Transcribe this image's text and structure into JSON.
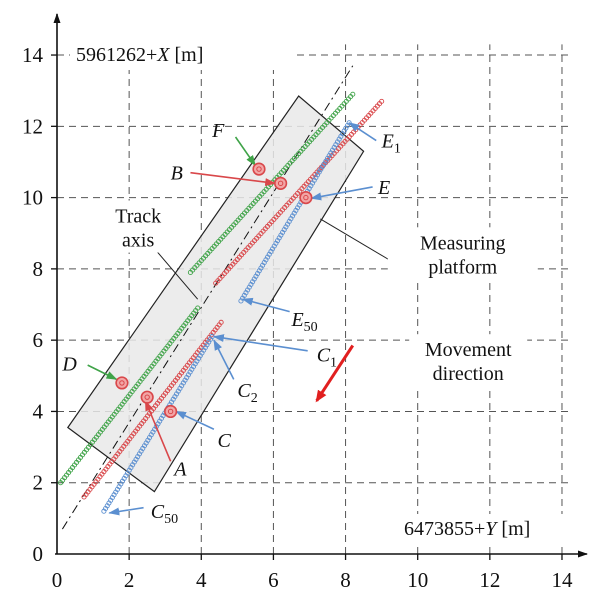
{
  "colors": {
    "green": "#3fa348",
    "red": "#d9474a",
    "blue": "#5b8fd0",
    "platform": "#e9e9e9",
    "movement_arrow": "#e11f1f",
    "grid": "#555555"
  },
  "chart_data": {
    "type": "scatter",
    "xlim": [
      0,
      14
    ],
    "ylim": [
      0,
      14
    ],
    "x_ticks": [
      0,
      2,
      4,
      6,
      8,
      10,
      12,
      14
    ],
    "y_ticks": [
      0,
      2,
      4,
      6,
      8,
      10,
      12,
      14
    ],
    "grid": true,
    "x_axis_label": {
      "base": "6473855+",
      "var": "Y",
      "unit": " [m]"
    },
    "y_axis_label": {
      "base": "5961262+",
      "var": "X",
      "unit": " [m]"
    },
    "series": [
      {
        "color": "green",
        "segments": [
          [
            [
              0.1,
              2.0
            ],
            [
              3.9,
              6.9
            ]
          ],
          [
            [
              3.7,
              7.9
            ],
            [
              8.2,
              12.9
            ]
          ]
        ]
      },
      {
        "color": "red",
        "segments": [
          [
            [
              0.75,
              1.6
            ],
            [
              4.55,
              6.5
            ]
          ],
          [
            [
              4.4,
              7.6
            ],
            [
              9.0,
              12.7
            ]
          ]
        ]
      },
      {
        "color": "blue",
        "segments": [
          [
            [
              1.3,
              1.2
            ],
            [
              4.3,
              6.1
            ]
          ],
          [
            [
              5.1,
              7.1
            ],
            [
              8.1,
              12.1
            ]
          ]
        ]
      }
    ],
    "track_axis_line": [
      [
        0.15,
        0.7
      ],
      [
        8.2,
        13.7
      ]
    ],
    "platform_polygon": [
      [
        0.3,
        3.55
      ],
      [
        2.7,
        1.75
      ],
      [
        8.5,
        11.3
      ],
      [
        6.7,
        12.85
      ]
    ],
    "points": [
      {
        "id": "F",
        "x": 5.6,
        "y": 10.8,
        "color": "red"
      },
      {
        "id": "B",
        "x": 6.2,
        "y": 10.4,
        "color": "red"
      },
      {
        "id": "E",
        "x": 6.9,
        "y": 10.0,
        "color": "red"
      },
      {
        "id": "D",
        "x": 1.8,
        "y": 4.8,
        "color": "red"
      },
      {
        "id": "A",
        "x": 2.5,
        "y": 4.4,
        "color": "red"
      },
      {
        "id": "C",
        "x": 3.15,
        "y": 4.0,
        "color": "red"
      }
    ],
    "callouts": [
      {
        "main": "F",
        "sub": "",
        "color": "green",
        "text": [
          4.3,
          11.9
        ],
        "from": [
          4.95,
          11.7
        ],
        "to": [
          5.5,
          10.9
        ]
      },
      {
        "main": "B",
        "sub": "",
        "color": "red",
        "text": [
          3.15,
          10.7
        ],
        "from": [
          3.7,
          10.7
        ],
        "to": [
          6.05,
          10.4
        ]
      },
      {
        "main": "E",
        "sub": "",
        "color": "blue",
        "text": [
          8.9,
          10.3
        ],
        "from": [
          8.75,
          10.3
        ],
        "to": [
          7.05,
          9.98
        ]
      },
      {
        "main": "E",
        "sub": "1",
        "color": "blue",
        "text": [
          9.0,
          11.6
        ],
        "from": [
          8.85,
          11.6
        ],
        "to": [
          8.1,
          12.1
        ]
      },
      {
        "main": "E",
        "sub": "50",
        "color": "blue",
        "text": [
          6.5,
          6.6
        ],
        "from": [
          6.45,
          6.8
        ],
        "to": [
          5.15,
          7.15
        ]
      },
      {
        "main": "C",
        "sub": "1",
        "color": "blue",
        "text": [
          7.2,
          5.6
        ],
        "from": [
          6.95,
          5.7
        ],
        "to": [
          4.35,
          6.1
        ]
      },
      {
        "main": "C",
        "sub": "2",
        "color": "blue",
        "text": [
          5.0,
          4.6
        ],
        "from": [
          4.9,
          4.9
        ],
        "to": [
          4.35,
          6.0
        ]
      },
      {
        "main": "C",
        "sub": "",
        "color": "blue",
        "text": [
          4.45,
          3.2
        ],
        "from": [
          4.35,
          3.5
        ],
        "to": [
          3.3,
          4.0
        ]
      },
      {
        "main": "C",
        "sub": "50",
        "color": "blue",
        "text": [
          2.6,
          1.2
        ],
        "from": [
          2.4,
          1.3
        ],
        "to": [
          1.45,
          1.15
        ]
      },
      {
        "main": "D",
        "sub": "",
        "color": "green",
        "text": [
          0.15,
          5.35
        ],
        "from": [
          0.85,
          5.3
        ],
        "to": [
          1.65,
          4.9
        ]
      },
      {
        "main": "A",
        "sub": "",
        "color": "red",
        "text": [
          3.25,
          2.4
        ],
        "from": [
          3.15,
          2.6
        ],
        "to": [
          2.45,
          4.3
        ]
      }
    ],
    "text_annotations": [
      {
        "lines": [
          "Track",
          "axis"
        ],
        "x": 2.25,
        "y": 9.3,
        "anchor": "middle",
        "leader": [
          [
            2.55,
            8.75
          ],
          [
            3.9,
            7.15
          ]
        ]
      },
      {
        "lines": [
          "Measuring",
          "platform"
        ],
        "x": 11.25,
        "y": 8.55,
        "anchor": "middle",
        "leader": [
          [
            9.3,
            8.2
          ],
          [
            7.3,
            9.4
          ]
        ]
      },
      {
        "lines": [
          "Movement",
          "direction"
        ],
        "x": 11.4,
        "y": 5.55,
        "anchor": "middle"
      }
    ],
    "movement_arrow": {
      "from": [
        8.2,
        5.85
      ],
      "to": [
        7.2,
        4.3
      ]
    }
  }
}
